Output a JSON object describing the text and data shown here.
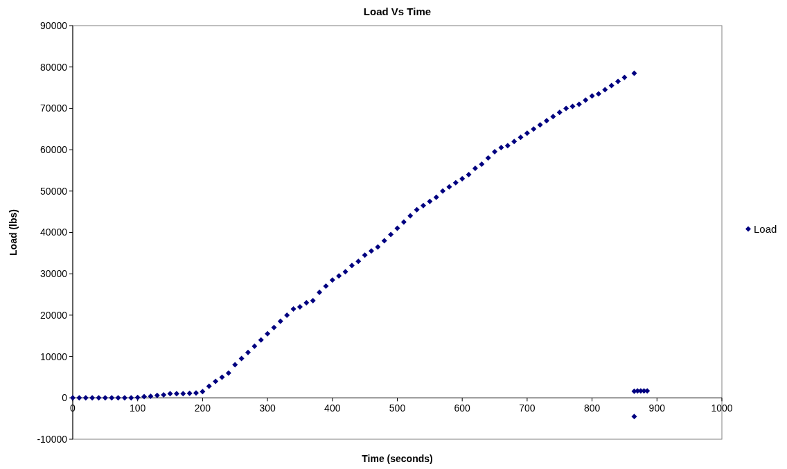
{
  "chart_data": {
    "type": "scatter",
    "title": "Load Vs Time",
    "xlabel": "Time (seconds)",
    "ylabel": "Load (lbs)",
    "xlim": [
      0,
      1000
    ],
    "xticks": [
      0,
      100,
      200,
      300,
      400,
      500,
      600,
      700,
      800,
      900,
      1000
    ],
    "ylim": [
      -10000,
      90000
    ],
    "yticks": [
      -10000,
      0,
      10000,
      20000,
      30000,
      40000,
      50000,
      60000,
      70000,
      80000,
      90000
    ],
    "grid": false,
    "legend": "right",
    "marker": "diamond",
    "series": [
      {
        "name": "Load",
        "color": "#000080",
        "x": [
          0,
          10,
          20,
          30,
          40,
          50,
          60,
          70,
          80,
          90,
          100,
          110,
          120,
          130,
          140,
          150,
          160,
          170,
          180,
          190,
          200,
          210,
          220,
          230,
          240,
          250,
          260,
          270,
          280,
          290,
          300,
          310,
          320,
          330,
          340,
          350,
          360,
          370,
          380,
          390,
          400,
          410,
          420,
          430,
          440,
          450,
          460,
          470,
          480,
          490,
          500,
          510,
          520,
          530,
          540,
          550,
          560,
          570,
          580,
          590,
          600,
          610,
          620,
          630,
          640,
          650,
          660,
          670,
          680,
          690,
          700,
          710,
          720,
          730,
          740,
          750,
          760,
          770,
          780,
          790,
          800,
          810,
          820,
          830,
          840,
          850,
          865,
          865,
          870,
          875,
          880,
          885,
          865
        ],
        "values": [
          0,
          0,
          0,
          0,
          0,
          0,
          0,
          0,
          0,
          0,
          100,
          300,
          400,
          600,
          700,
          1000,
          1000,
          1000,
          1100,
          1200,
          1500,
          2800,
          4000,
          5000,
          6000,
          8000,
          9500,
          11000,
          12500,
          14000,
          15500,
          17000,
          18500,
          20000,
          21500,
          22000,
          23000,
          23500,
          25500,
          27000,
          28500,
          29500,
          30500,
          32000,
          33000,
          34500,
          35500,
          36500,
          38000,
          39500,
          41000,
          42500,
          44000,
          45500,
          46500,
          47500,
          48500,
          50000,
          51000,
          52000,
          53000,
          54000,
          55500,
          56500,
          58000,
          59500,
          60500,
          61000,
          62000,
          63000,
          64000,
          65000,
          66000,
          67000,
          68000,
          69000,
          70000,
          70500,
          71000,
          72000,
          73000,
          73500,
          74500,
          75500,
          76500,
          77500,
          78500,
          1600,
          1700,
          1700,
          1700,
          1700,
          -4500
        ]
      }
    ]
  }
}
